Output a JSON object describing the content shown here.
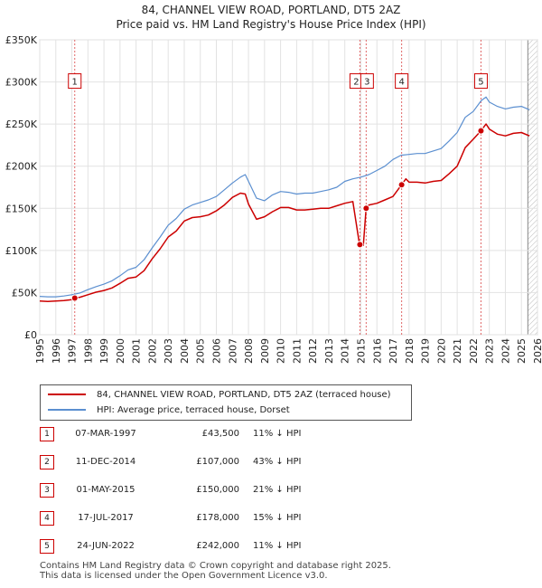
{
  "chart_data": {
    "type": "line",
    "title": "84, CHANNEL VIEW ROAD, PORTLAND, DT5 2AZ",
    "subtitle": "Price paid vs. HM Land Registry's House Price Index (HPI)",
    "xlim": [
      1995,
      2026
    ],
    "ylim": [
      0,
      350000
    ],
    "y_ticks": [
      {
        "value": 0,
        "label": "£0"
      },
      {
        "value": 50000,
        "label": "£50K"
      },
      {
        "value": 100000,
        "label": "£100K"
      },
      {
        "value": 150000,
        "label": "£150K"
      },
      {
        "value": 200000,
        "label": "£200K"
      },
      {
        "value": 250000,
        "label": "£250K"
      },
      {
        "value": 300000,
        "label": "£300K"
      },
      {
        "value": 350000,
        "label": "£350K"
      }
    ],
    "x_ticks": [
      "1995",
      "1996",
      "1997",
      "1998",
      "1999",
      "2000",
      "2001",
      "2002",
      "2003",
      "2004",
      "2005",
      "2006",
      "2007",
      "2008",
      "2009",
      "2010",
      "2011",
      "2012",
      "2013",
      "2014",
      "2015",
      "2016",
      "2017",
      "2018",
      "2019",
      "2020",
      "2021",
      "2022",
      "2023",
      "2024",
      "2025",
      "2026"
    ],
    "series": [
      {
        "name": "84, CHANNEL VIEW ROAD, PORTLAND, DT5 2AZ (terraced house)",
        "color": "#cc0000",
        "x": [
          1995.0,
          1995.5,
          1996.0,
          1996.5,
          1997.0,
          1997.18,
          1997.5,
          1998.0,
          1998.5,
          1999.0,
          1999.5,
          2000.0,
          2000.5,
          2001.0,
          2001.5,
          2002.0,
          2002.5,
          2003.0,
          2003.5,
          2004.0,
          2004.5,
          2005.0,
          2005.5,
          2006.0,
          2006.5,
          2007.0,
          2007.5,
          2007.8,
          2008.0,
          2008.5,
          2009.0,
          2009.5,
          2010.0,
          2010.5,
          2011.0,
          2011.5,
          2012.0,
          2012.5,
          2013.0,
          2013.5,
          2014.0,
          2014.5,
          2014.9,
          2014.94,
          2015.15,
          2015.33,
          2015.5,
          2016.0,
          2016.5,
          2017.0,
          2017.54,
          2017.8,
          2018.0,
          2018.5,
          2019.0,
          2019.5,
          2020.0,
          2020.5,
          2021.0,
          2021.5,
          2022.0,
          2022.48,
          2022.8,
          2023.0,
          2023.5,
          2024.0,
          2024.5,
          2025.0,
          2025.5
        ],
        "y": [
          40000,
          39500,
          40000,
          40500,
          41500,
          43500,
          44500,
          47500,
          50500,
          52500,
          55500,
          61000,
          67000,
          68500,
          76000,
          90000,
          102000,
          116000,
          123000,
          135000,
          139000,
          140000,
          142000,
          147000,
          154000,
          163000,
          168000,
          167000,
          155000,
          137000,
          140000,
          146000,
          151000,
          151000,
          148000,
          148000,
          149000,
          150000,
          150000,
          153000,
          156000,
          158000,
          109000,
          107000,
          106000,
          150000,
          154000,
          156000,
          160000,
          164000,
          178000,
          185000,
          181000,
          181000,
          180000,
          182000,
          183000,
          191000,
          200000,
          222000,
          232000,
          242000,
          250000,
          244000,
          238000,
          236000,
          239000,
          240000,
          236000
        ]
      },
      {
        "name": "HPI: Average price, terraced house, Dorset",
        "color": "#5b8fd0",
        "x": [
          1995.0,
          1995.5,
          1996.0,
          1996.5,
          1997.0,
          1997.5,
          1998.0,
          1998.5,
          1999.0,
          1999.5,
          2000.0,
          2000.5,
          2001.0,
          2001.5,
          2002.0,
          2002.5,
          2003.0,
          2003.5,
          2004.0,
          2004.5,
          2005.0,
          2005.5,
          2006.0,
          2006.5,
          2007.0,
          2007.5,
          2007.8,
          2008.0,
          2008.5,
          2009.0,
          2009.5,
          2010.0,
          2010.5,
          2011.0,
          2011.5,
          2012.0,
          2012.5,
          2013.0,
          2013.5,
          2014.0,
          2014.5,
          2015.0,
          2015.5,
          2016.0,
          2016.5,
          2017.0,
          2017.5,
          2018.0,
          2018.5,
          2019.0,
          2019.5,
          2020.0,
          2020.5,
          2021.0,
          2021.5,
          2022.0,
          2022.5,
          2022.8,
          2023.0,
          2023.5,
          2024.0,
          2024.5,
          2025.0,
          2025.5
        ],
        "y": [
          45500,
          45000,
          45000,
          46000,
          47500,
          49500,
          53500,
          57000,
          60000,
          64000,
          70000,
          77000,
          80000,
          89000,
          103000,
          116000,
          130000,
          138000,
          149000,
          154000,
          157000,
          160000,
          164000,
          172000,
          180000,
          187000,
          190000,
          182000,
          162000,
          159000,
          166000,
          170000,
          169000,
          167000,
          168000,
          168000,
          170000,
          172000,
          175000,
          182000,
          185000,
          187000,
          190000,
          195000,
          200000,
          208000,
          213000,
          214000,
          215000,
          215000,
          218000,
          221000,
          230000,
          240000,
          258000,
          265000,
          278000,
          282000,
          276000,
          271000,
          268000,
          270000,
          271000,
          267000
        ]
      }
    ],
    "markers": [
      {
        "label": "1",
        "x": 1997.18,
        "y": 43500
      },
      {
        "label": "2",
        "x": 2014.94,
        "y": 107000
      },
      {
        "label": "3",
        "x": 2015.33,
        "y": 150000
      },
      {
        "label": "4",
        "x": 2017.54,
        "y": 178000
      },
      {
        "label": "5",
        "x": 2022.48,
        "y": 242000
      }
    ],
    "box_marker_y": 300000
  },
  "legend": {
    "red_label": "84, CHANNEL VIEW ROAD, PORTLAND, DT5 2AZ (terraced house)",
    "blue_label": "HPI: Average price, terraced house, Dorset",
    "red_color": "#cc0000",
    "blue_color": "#5b8fd0"
  },
  "sales": [
    {
      "num": "1",
      "date": "07-MAR-1997",
      "price": "£43,500",
      "hpi": "11% ↓ HPI"
    },
    {
      "num": "2",
      "date": "11-DEC-2014",
      "price": "£107,000",
      "hpi": "43% ↓ HPI"
    },
    {
      "num": "3",
      "date": "01-MAY-2015",
      "price": "£150,000",
      "hpi": "21% ↓ HPI"
    },
    {
      "num": "4",
      "date": "17-JUL-2017",
      "price": "£178,000",
      "hpi": "15% ↓ HPI"
    },
    {
      "num": "5",
      "date": "24-JUN-2022",
      "price": "£242,000",
      "hpi": "11% ↓ HPI"
    }
  ],
  "footer": {
    "line1": "Contains HM Land Registry data © Crown copyright and database right 2025.",
    "line2": "This data is licensed under the Open Government Licence v3.0."
  }
}
